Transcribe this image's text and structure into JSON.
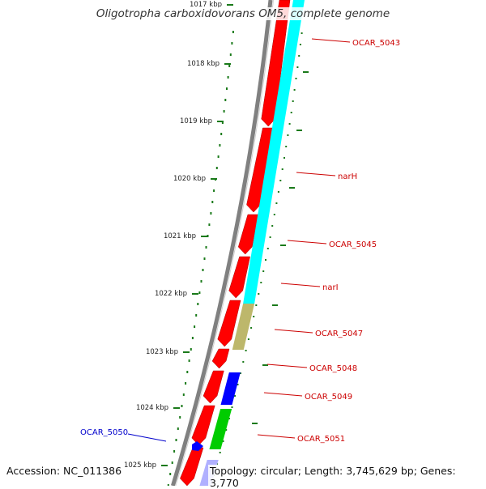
{
  "title": "Oligotropha carboxidovorans OM5, complete genome",
  "accession": "Accession: NC_011386",
  "summary": "Topology: circular; Length: 3,745,629 bp; Genes: 3,770",
  "colors": {
    "backbone": "#808080",
    "tick": "#1a7a1a",
    "forward_gene": "#ff0000",
    "reverse_gene": "#0000ff",
    "operon_cyan": "#00ffff",
    "operon_khaki": "#bdb76b",
    "operon_green": "#00cc00",
    "label_red": "#cc0000",
    "label_blue": "#0000cc"
  },
  "kbp_ticks": [
    "1017 kbp",
    "1018 kbp",
    "1019 kbp",
    "1020 kbp",
    "1021 kbp",
    "1022 kbp",
    "1023 kbp",
    "1024 kbp",
    "1025 kbp"
  ],
  "gene_labels": [
    {
      "text": "OCAR_5043",
      "color": "red"
    },
    {
      "text": "narH",
      "color": "red"
    },
    {
      "text": "OCAR_5045",
      "color": "red"
    },
    {
      "text": "narI",
      "color": "red"
    },
    {
      "text": "OCAR_5047",
      "color": "red"
    },
    {
      "text": "OCAR_5048",
      "color": "red"
    },
    {
      "text": "OCAR_5049",
      "color": "red"
    },
    {
      "text": "OCAR_5051",
      "color": "red"
    },
    {
      "text": "OCAR_5050",
      "color": "blue"
    }
  ]
}
